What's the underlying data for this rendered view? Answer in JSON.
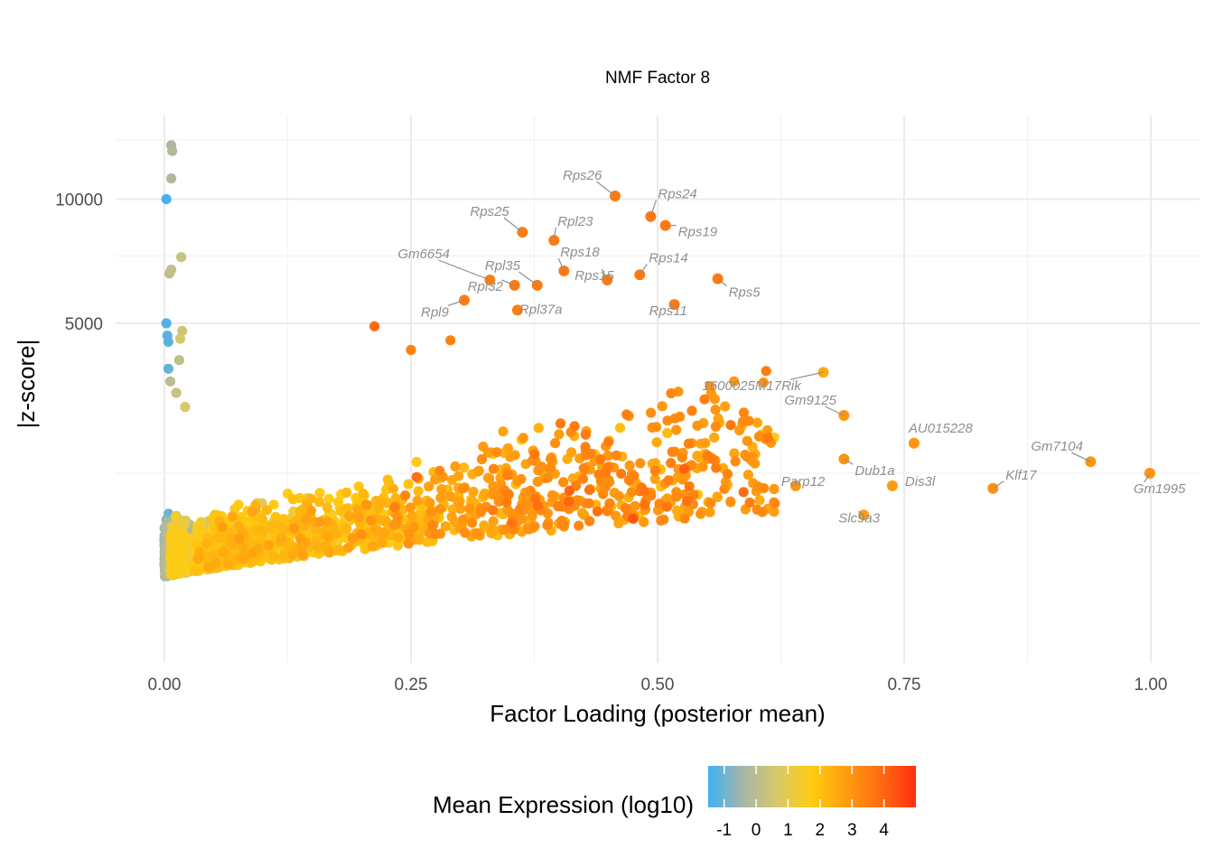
{
  "chart_data": {
    "type": "scatter",
    "title": "NMF Factor 8",
    "xlabel": "Factor Loading (posterior mean)",
    "ylabel": "|z-score|",
    "xlim": [
      -0.02,
      1.02
    ],
    "x_ticks": [
      0.0,
      0.25,
      0.5,
      0.75,
      1.0
    ],
    "x_tick_labels": [
      "0.00",
      "0.25",
      "0.50",
      "0.75",
      "1.00"
    ],
    "y_scale": "sqrt",
    "ylim": [
      0,
      14000
    ],
    "y_ticks": [
      5000,
      10000
    ],
    "y_tick_labels": [
      "5000",
      "10000"
    ],
    "grid": true,
    "color_scale": {
      "title": "Mean Expression (log10)",
      "ticks": [
        -1,
        0,
        1,
        2,
        3,
        4
      ],
      "tick_labels": [
        "-1",
        "0",
        "1",
        "2",
        "3",
        "4"
      ],
      "range": [
        -1.5,
        5.0
      ],
      "colors": [
        "#3fb1f3",
        "#a6b6a6",
        "#d8c86a",
        "#ffcc10",
        "#ff9c10",
        "#ff6a10",
        "#ff3010"
      ],
      "legend_position": "bottom"
    },
    "labeled_points": [
      {
        "gene": "Rps26",
        "x": 0.457,
        "y": 10150,
        "expr": 3.6
      },
      {
        "gene": "Rps24",
        "x": 0.493,
        "y": 9200,
        "expr": 3.6
      },
      {
        "gene": "Rps19",
        "x": 0.508,
        "y": 8800,
        "expr": 3.6
      },
      {
        "gene": "Rps25",
        "x": 0.363,
        "y": 8500,
        "expr": 3.5
      },
      {
        "gene": "Rpl23",
        "x": 0.395,
        "y": 8150,
        "expr": 3.6
      },
      {
        "gene": "Rpl35",
        "x": 0.378,
        "y": 6350,
        "expr": 3.6
      },
      {
        "gene": "Rps18",
        "x": 0.405,
        "y": 6900,
        "expr": 3.6
      },
      {
        "gene": "Rps14",
        "x": 0.482,
        "y": 6750,
        "expr": 3.6
      },
      {
        "gene": "Gm6654",
        "x": 0.33,
        "y": 6550,
        "expr": 3.5
      },
      {
        "gene": "Rpl32",
        "x": 0.355,
        "y": 6350,
        "expr": 3.6
      },
      {
        "gene": "Rps15",
        "x": 0.449,
        "y": 6550,
        "expr": 3.6
      },
      {
        "gene": "Rps5",
        "x": 0.561,
        "y": 6600,
        "expr": 3.6
      },
      {
        "gene": "Rpl9",
        "x": 0.304,
        "y": 5800,
        "expr": 3.5
      },
      {
        "gene": "Rpl37a",
        "x": 0.358,
        "y": 5450,
        "expr": 3.5
      },
      {
        "gene": "Rps11",
        "x": 0.517,
        "y": 5650,
        "expr": 3.6
      },
      {
        "gene": "1600025M17Rik",
        "x": 0.668,
        "y": 3500,
        "expr": 2.5
      },
      {
        "gene": "Gm9125",
        "x": 0.689,
        "y": 2400,
        "expr": 3.0
      },
      {
        "gene": "AU015228",
        "x": 0.76,
        "y": 1800,
        "expr": 3.0
      },
      {
        "gene": "Gm7104",
        "x": 0.939,
        "y": 1450,
        "expr": 3.0
      },
      {
        "gene": "Dub1a",
        "x": 0.689,
        "y": 1500,
        "expr": 3.0
      },
      {
        "gene": "Gm1995",
        "x": 0.999,
        "y": 1250,
        "expr": 3.0
      },
      {
        "gene": "Parp12",
        "x": 0.64,
        "y": 1050,
        "expr": 3.0
      },
      {
        "gene": "Dis3l",
        "x": 0.738,
        "y": 1050,
        "expr": 2.9
      },
      {
        "gene": "Klf17",
        "x": 0.84,
        "y": 1010,
        "expr": 3.1
      },
      {
        "gene": "Slc9a3",
        "x": 0.709,
        "y": 650,
        "expr": 2.8
      }
    ]
  }
}
